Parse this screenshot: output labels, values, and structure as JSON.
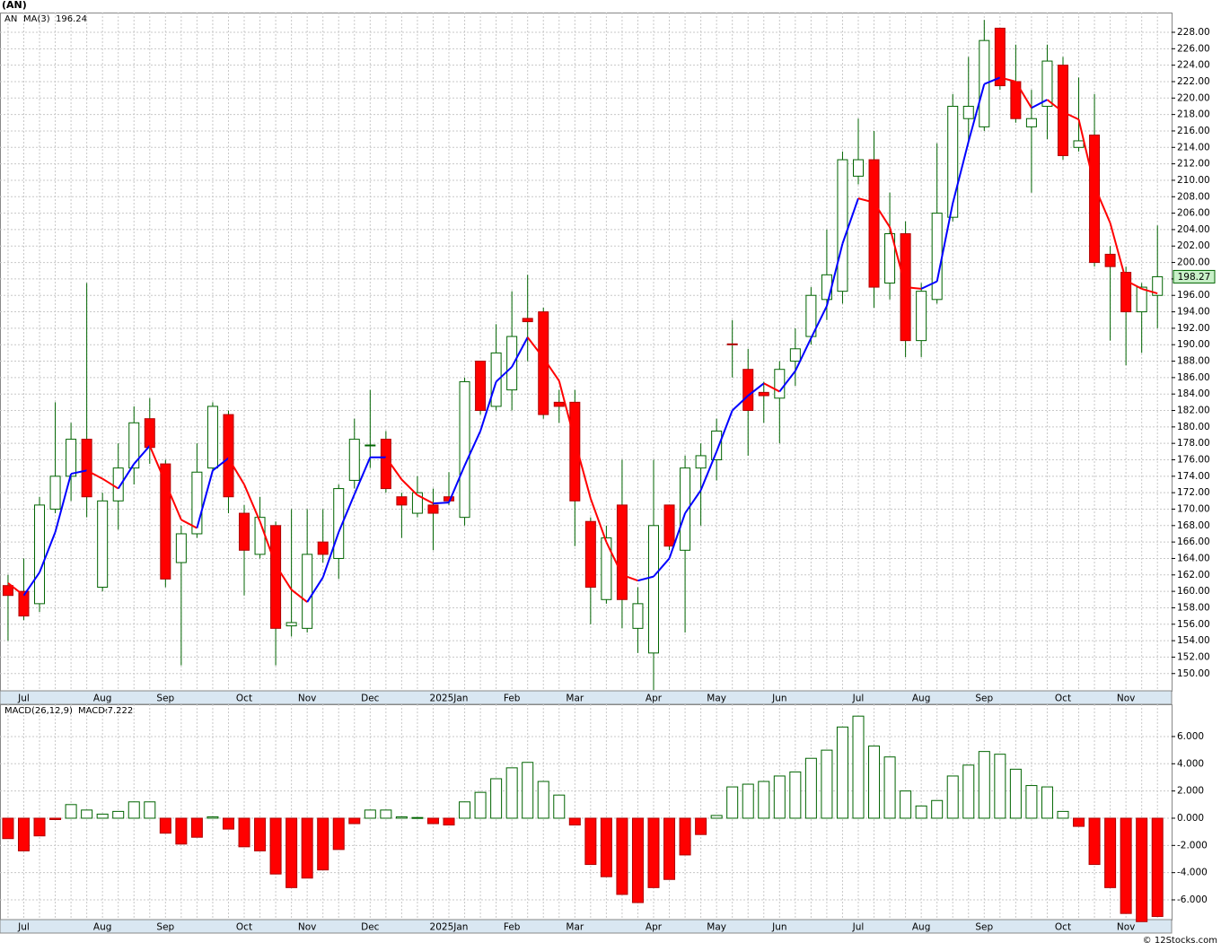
{
  "title": "(AN)",
  "footer": "© 12Stocks.com",
  "chart_data": [
    {
      "type": "candlestick",
      "categories": [
        null,
        "Jul",
        null,
        null,
        null,
        null,
        "Aug",
        null,
        null,
        null,
        "Sep",
        null,
        null,
        null,
        null,
        "Oct",
        null,
        null,
        null,
        "Nov",
        null,
        null,
        null,
        "Dec",
        null,
        null,
        null,
        null,
        "2025Jan",
        null,
        null,
        null,
        "Feb",
        null,
        null,
        null,
        "Mar",
        null,
        null,
        null,
        null,
        "Apr",
        null,
        null,
        null,
        "May",
        null,
        null,
        null,
        "Jun",
        null,
        null,
        null,
        null,
        "Jul",
        null,
        null,
        null,
        "Aug",
        null,
        null,
        null,
        "Sep",
        null,
        null,
        null,
        null,
        "Oct",
        null,
        null,
        null,
        "Nov",
        null,
        null
      ],
      "series": [
        {
          "name": "AN",
          "up_color": "#ffffff",
          "down_color": "#ff0000",
          "edge_color": "#006400",
          "open": [
            160.7,
            160,
            158.5,
            170,
            174,
            178.5,
            160.5,
            171,
            175,
            181,
            175.5,
            163.5,
            167,
            175,
            181.5,
            169.5,
            164.5,
            168,
            155.8,
            155.5,
            166,
            164,
            173.5,
            177.7,
            178.5,
            171.5,
            169.5,
            170.5,
            171.5,
            169,
            188,
            182.5,
            184.5,
            193.2,
            194,
            183,
            183,
            168.5,
            159,
            170.5,
            155.5,
            152.5,
            170.5,
            165,
            175,
            176,
            190.1,
            187,
            184.2,
            183.5,
            188,
            191,
            195.5,
            196.5,
            210.5,
            212.5,
            197.5,
            203.5,
            190.5,
            195.5,
            205.5,
            217.5,
            216.5,
            228.5,
            222,
            216.5,
            219,
            224,
            214,
            215.5,
            201,
            198.8,
            194,
            196
          ],
          "high": [
            162,
            164,
            171.5,
            183,
            180.5,
            197.5,
            172,
            178,
            182.5,
            183.5,
            176,
            168,
            178,
            183,
            182,
            170.5,
            171.5,
            168.5,
            170,
            170,
            170,
            173,
            181,
            184.5,
            179.5,
            172,
            174,
            172.5,
            174.5,
            186,
            188,
            192.5,
            196.5,
            198.5,
            194.5,
            184.5,
            184.5,
            169,
            168,
            176,
            160.5,
            176,
            170.5,
            176.5,
            178,
            181,
            193,
            189.5,
            185.5,
            188,
            192,
            197,
            204,
            213.5,
            217.5,
            216,
            208.5,
            205,
            197.5,
            214.5,
            220.5,
            225,
            229.5,
            228.5,
            226.5,
            221,
            226.5,
            225,
            222.5,
            220.5,
            202,
            199.5,
            197.5,
            204.5
          ],
          "low": [
            154,
            156.5,
            157.5,
            169.5,
            171,
            169,
            160,
            167.5,
            173,
            175.5,
            160.5,
            151,
            166.5,
            174.5,
            169.5,
            159.5,
            164,
            151,
            154.5,
            155,
            163.5,
            161.5,
            172.5,
            175,
            172,
            166.5,
            169,
            165,
            170.5,
            168,
            181.5,
            182,
            182,
            188,
            181,
            180.5,
            165.5,
            156,
            158.5,
            155.5,
            152.5,
            148,
            165,
            155,
            168,
            173.5,
            186,
            176.5,
            180.5,
            178,
            185,
            190,
            193,
            195,
            209.5,
            194.5,
            195.5,
            188.5,
            188.5,
            195,
            205,
            214.5,
            216,
            221,
            217,
            208.5,
            215,
            212.5,
            213.5,
            199.5,
            190.5,
            187.5,
            189,
            192
          ],
          "close": [
            159.5,
            157,
            170.5,
            174,
            178.5,
            171.5,
            171,
            175,
            180.5,
            177.5,
            161.5,
            167,
            174.5,
            182.5,
            171.5,
            165,
            169,
            155.5,
            156.2,
            164.5,
            164.5,
            172.5,
            178.5,
            177.8,
            172.5,
            170.5,
            172,
            169.5,
            171,
            185.5,
            182,
            189,
            191,
            192.8,
            181.5,
            182.5,
            171,
            160.5,
            166.5,
            159,
            158.5,
            168,
            165.5,
            175,
            176.5,
            179.5,
            190,
            182,
            183.8,
            187,
            189.5,
            196,
            198.5,
            212.5,
            212.5,
            197,
            203.5,
            190.5,
            196.5,
            206,
            219,
            219,
            227,
            221.5,
            217.5,
            217.5,
            224.5,
            213,
            214.8,
            200,
            199.5,
            194,
            197,
            198.27
          ]
        },
        {
          "name": "MA(3)",
          "up_color": "#0000ff",
          "down_color": "#ff0000",
          "values": [
            161,
            159.5,
            162.3,
            167.2,
            174.3,
            174.7,
            173.7,
            172.5,
            175.5,
            177.7,
            173.2,
            168.7,
            167.7,
            174.7,
            176.2,
            173,
            168.5,
            163.2,
            160.2,
            158.7,
            161.7,
            167.2,
            171.8,
            176.3,
            176.3,
            173.6,
            171.7,
            170.7,
            170.8,
            175.3,
            179.5,
            185.5,
            187.3,
            190.9,
            188.4,
            185.6,
            178.3,
            171.3,
            166,
            162,
            161.3,
            161.8,
            164,
            169.5,
            172.3,
            177,
            182,
            183.8,
            185.3,
            184.3,
            186.8,
            190.8,
            194.7,
            202.3,
            207.8,
            207.3,
            204.3,
            197,
            196.8,
            197.7,
            207.2,
            214.7,
            221.7,
            222.5,
            222,
            218.8,
            219.8,
            218.3,
            217.4,
            209.3,
            204.8,
            197.8,
            196.8,
            196.24
          ]
        }
      ],
      "xlim": [
        -0.51,
        73.9
      ],
      "ylim": [
        147.9,
        230.4
      ],
      "yticks": [
        {
          "value": 150,
          "label": "150.00"
        },
        {
          "value": 152,
          "label": "152.00"
        },
        {
          "value": 154,
          "label": "154.00"
        },
        {
          "value": 156,
          "label": "156.00"
        },
        {
          "value": 158,
          "label": "158.00"
        },
        {
          "value": 160,
          "label": "160.00"
        },
        {
          "value": 162,
          "label": "162.00"
        },
        {
          "value": 164,
          "label": "164.00"
        },
        {
          "value": 166,
          "label": "166.00"
        },
        {
          "value": 168,
          "label": "168.00"
        },
        {
          "value": 170,
          "label": "170.00"
        },
        {
          "value": 172,
          "label": "172.00"
        },
        {
          "value": 174,
          "label": "174.00"
        },
        {
          "value": 176,
          "label": "176.00"
        },
        {
          "value": 178,
          "label": "178.00"
        },
        {
          "value": 180,
          "label": "180.00"
        },
        {
          "value": 182,
          "label": "182.00"
        },
        {
          "value": 184,
          "label": "184.00"
        },
        {
          "value": 186,
          "label": "186.00"
        },
        {
          "value": 188,
          "label": "188.00"
        },
        {
          "value": 190,
          "label": "190.00"
        },
        {
          "value": 192,
          "label": "192.00"
        },
        {
          "value": 194,
          "label": "194.00"
        },
        {
          "value": 196,
          "label": "196.00"
        },
        {
          "value": 198,
          "label": "198.00"
        },
        {
          "value": 200,
          "label": "200.00"
        },
        {
          "value": 202,
          "label": "202.00"
        },
        {
          "value": 204,
          "label": "204.00"
        },
        {
          "value": 206,
          "label": "206.00"
        },
        {
          "value": 208,
          "label": "208.00"
        },
        {
          "value": 210,
          "label": "210.00"
        },
        {
          "value": 212,
          "label": "212.00"
        },
        {
          "value": 214,
          "label": "214.00"
        },
        {
          "value": 216,
          "label": "216.00"
        },
        {
          "value": 218,
          "label": "218.00"
        },
        {
          "value": 220,
          "label": "220.00"
        },
        {
          "value": 222,
          "label": "222.00"
        },
        {
          "value": 224,
          "label": "224.00"
        },
        {
          "value": 226,
          "label": "226.00"
        },
        {
          "value": 228,
          "label": "228.00"
        }
      ],
      "grid": true
    },
    {
      "type": "bar",
      "title": "MACD(26,12,9)",
      "categories": [
        null,
        "Jul",
        null,
        null,
        null,
        null,
        "Aug",
        null,
        null,
        null,
        "Sep",
        null,
        null,
        null,
        null,
        "Oct",
        null,
        null,
        null,
        "Nov",
        null,
        null,
        null,
        "Dec",
        null,
        null,
        null,
        null,
        "2025Jan",
        null,
        null,
        null,
        "Feb",
        null,
        null,
        null,
        "Mar",
        null,
        null,
        null,
        null,
        "Apr",
        null,
        null,
        null,
        "May",
        null,
        null,
        null,
        "Jun",
        null,
        null,
        null,
        null,
        "Jul",
        null,
        null,
        null,
        "Aug",
        null,
        null,
        null,
        "Sep",
        null,
        null,
        null,
        null,
        "Oct",
        null,
        null,
        null,
        "Nov",
        null,
        null
      ],
      "series": [
        {
          "name": "MACD:",
          "up_color": "#006400",
          "down_color": "#ff0000",
          "values": [
            -1.5,
            -2.4,
            -1.3,
            -0.1,
            1.0,
            0.6,
            0.3,
            0.5,
            1.2,
            1.2,
            -1.1,
            -1.9,
            -1.4,
            0.1,
            -0.8,
            -2.1,
            -2.4,
            -4.1,
            -5.1,
            -4.4,
            -3.8,
            -2.3,
            -0.4,
            0.6,
            0.6,
            0.1,
            0.05,
            -0.4,
            -0.5,
            1.2,
            1.9,
            2.9,
            3.7,
            4.1,
            2.7,
            1.7,
            -0.5,
            -3.4,
            -4.3,
            -5.6,
            -6.2,
            -5.1,
            -4.5,
            -2.7,
            -1.2,
            0.2,
            2.3,
            2.5,
            2.7,
            3.1,
            3.4,
            4.4,
            5.0,
            6.7,
            7.5,
            5.3,
            4.5,
            2.0,
            0.9,
            1.3,
            3.1,
            3.9,
            4.9,
            4.7,
            3.6,
            2.4,
            2.3,
            0.5,
            -0.6,
            -3.4,
            -5.1,
            -7.0,
            -7.6,
            -7.222
          ]
        }
      ],
      "xlim": [
        -0.51,
        73.9
      ],
      "ylim": [
        -7.45,
        8.37
      ],
      "yticks": [
        {
          "value": -6,
          "label": "-6.000"
        },
        {
          "value": -4,
          "label": "-4.000"
        },
        {
          "value": -2,
          "label": "-2.000"
        },
        {
          "value": 0,
          "label": "0.000"
        },
        {
          "value": 2,
          "label": "2.000"
        },
        {
          "value": 4,
          "label": "4.000"
        },
        {
          "value": 6,
          "label": "6.000"
        }
      ],
      "grid": true
    }
  ]
}
